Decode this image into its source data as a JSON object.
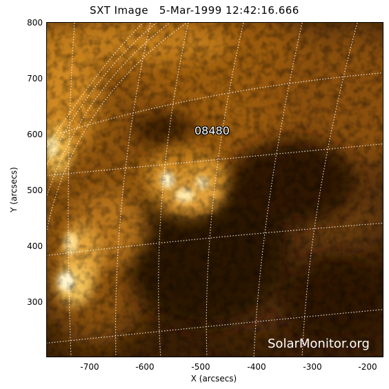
{
  "title": "SXT Image   5-Mar-1999 12:42:16.666",
  "x_axis": {
    "label": "X (arcsecs)",
    "ticks": [
      "-700",
      "-600",
      "-500",
      "-400",
      "-300",
      "-200"
    ]
  },
  "y_axis": {
    "label": "Y (arcsecs)",
    "ticks": [
      "800",
      "700",
      "600",
      "500",
      "400",
      "300"
    ]
  },
  "region_label": "08480",
  "watermark": "SolarMonitor.org",
  "colors": {
    "background": "#3a1f05",
    "plasma_mid": "#b66e12",
    "plasma_bright": "#ffe9a8",
    "grid_line": "#ffffff"
  }
}
